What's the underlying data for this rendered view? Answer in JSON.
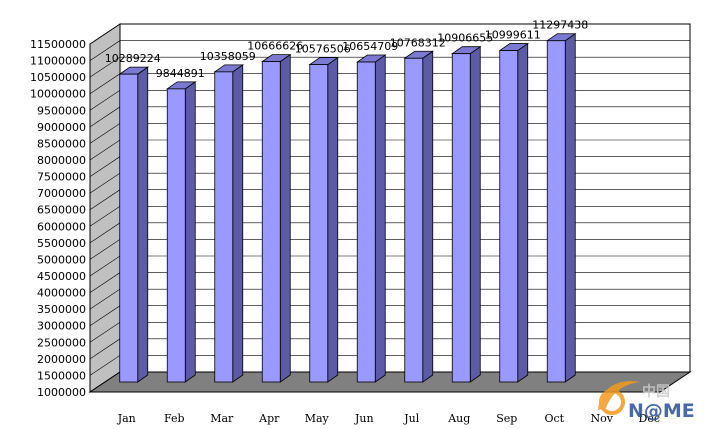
{
  "chart_data": {
    "type": "bar",
    "style": "3d-column",
    "categories": [
      "Jan",
      "Feb",
      "Mar",
      "Apr",
      "May",
      "Jun",
      "Jul",
      "Aug",
      "Sep",
      "Oct",
      "Nov",
      "Dec"
    ],
    "values": [
      10289224,
      9844891,
      10358059,
      10666626,
      10576506,
      10654709,
      10768312,
      10906655,
      10999611,
      11297438,
      null,
      null
    ],
    "data_labels": [
      "10289224",
      "9844891",
      "10358059",
      "10666626",
      "10576506",
      "10654709",
      "10768312",
      "10906655",
      "10999611",
      "11297438",
      "",
      ""
    ],
    "ylim": [
      1000000,
      11500000
    ],
    "yticks": [
      "1000000",
      "1500000",
      "2000000",
      "2500000",
      "3000000",
      "3500000",
      "4000000",
      "4500000",
      "5000000",
      "5500000",
      "6000000",
      "6500000",
      "7000000",
      "7500000",
      "8000000",
      "8500000",
      "9000000",
      "9500000",
      "10000000",
      "10500000",
      "11000000",
      "11500000"
    ],
    "title": "",
    "xlabel": "",
    "ylabel": "",
    "grid": true,
    "legend": "none",
    "colors": {
      "bar_front": "#9999ff",
      "bar_side": "#5c5ca6",
      "bar_top": "#7a7ad0",
      "bar_outline": "#000000",
      "floor": "#808080",
      "left_wall": "#c0c0c0",
      "back_wall": "#ffffff",
      "gridline": "#000000"
    }
  },
  "watermark": {
    "text": "N@ME",
    "cn_text": "中国",
    "colors": {
      "orange": "#f39a1e",
      "blue": "#2a4f9a"
    }
  }
}
